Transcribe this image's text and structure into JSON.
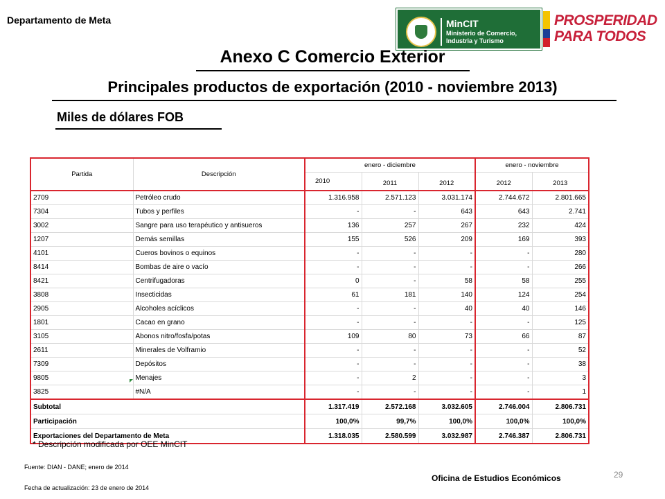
{
  "header": {
    "department": "Departamento de Meta",
    "logo_mincit": "MinCIT",
    "logo_mincit_sub": "Ministerio de Comercio, Industria y Turismo",
    "logo_prosperidad": "PROSPERIDAD PARA TODOS"
  },
  "title": "Anexo C Comercio Exterior",
  "subtitle": "Principales productos de exportación (2010 - noviembre 2013)",
  "units": "Miles de dólares FOB",
  "table": {
    "col_partida": "Partida",
    "col_descripcion": "Descripción",
    "group_1": "enero - diciembre",
    "group_2": "enero - noviembre",
    "years": [
      "2010",
      "2011",
      "2012",
      "2012",
      "2013"
    ],
    "rows": [
      {
        "partida": "2709",
        "desc": "Petróleo crudo",
        "v": [
          "1.316.958",
          "2.571.123",
          "3.031.174",
          "2.744.672",
          "2.801.665"
        ]
      },
      {
        "partida": "7304",
        "desc": "Tubos y perfiles",
        "v": [
          "-",
          "-",
          "643",
          "643",
          "2.741"
        ]
      },
      {
        "partida": "3002",
        "desc": "Sangre para uso terapéutico y antisueros",
        "v": [
          "136",
          "257",
          "267",
          "232",
          "424"
        ]
      },
      {
        "partida": "1207",
        "desc": "Demás semillas",
        "v": [
          "155",
          "526",
          "209",
          "169",
          "393"
        ]
      },
      {
        "partida": "4101",
        "desc": "Cueros bovinos o equinos",
        "v": [
          "-",
          "-",
          "-",
          "-",
          "280"
        ]
      },
      {
        "partida": "8414",
        "desc": "Bombas de aire o vacío",
        "v": [
          "-",
          "-",
          "-",
          "-",
          "266"
        ]
      },
      {
        "partida": "8421",
        "desc": "Centrifugadoras",
        "v": [
          "0",
          "-",
          "58",
          "58",
          "255"
        ]
      },
      {
        "partida": "3808",
        "desc": "Insecticidas",
        "v": [
          "61",
          "181",
          "140",
          "124",
          "254"
        ]
      },
      {
        "partida": "2905",
        "desc": "Alcoholes acíclicos",
        "v": [
          "-",
          "-",
          "40",
          "40",
          "146"
        ]
      },
      {
        "partida": "1801",
        "desc": "Cacao en grano",
        "v": [
          "-",
          "-",
          "-",
          "-",
          "125"
        ]
      },
      {
        "partida": "3105",
        "desc": "Abonos nitro/fosfa/potas",
        "v": [
          "109",
          "80",
          "73",
          "66",
          "87"
        ]
      },
      {
        "partida": "2611",
        "desc": "Minerales de Volframio",
        "v": [
          "-",
          "-",
          "-",
          "-",
          "52"
        ]
      },
      {
        "partida": "7309",
        "desc": "Depósitos",
        "v": [
          "-",
          "-",
          "-",
          "-",
          "38"
        ]
      },
      {
        "partida": "9805",
        "desc": "Menajes",
        "v": [
          "-",
          "2",
          "-",
          "-",
          "3"
        ]
      },
      {
        "partida": "3825",
        "desc": "#N/A",
        "v": [
          "-",
          "-",
          "-",
          "-",
          "1"
        ]
      }
    ],
    "subtotal": {
      "label": "Subtotal",
      "v": [
        "1.317.419",
        "2.572.168",
        "3.032.605",
        "2.746.004",
        "2.806.731"
      ]
    },
    "participacion": {
      "label": "Participación",
      "v": [
        "100,0%",
        "99,7%",
        "100,0%",
        "100,0%",
        "100,0%"
      ]
    },
    "total": {
      "label": "Exportaciones del Departamento de Meta",
      "v": [
        "1.318.035",
        "2.580.599",
        "3.032.987",
        "2.746.387",
        "2.806.731"
      ]
    }
  },
  "note": "* Descripción modificada por OEE MinCIT",
  "source": "Fuente: DIAN - DANE; enero de 2014",
  "date": "Fecha  de actualización: 23 de enero de 2014",
  "office": "Oficina de Estudios Económicos",
  "page_number": "29",
  "colors": {
    "border_red": "#d9262f",
    "mincit_green": "#1f6e37",
    "prosperidad_red": "#c7203a"
  }
}
